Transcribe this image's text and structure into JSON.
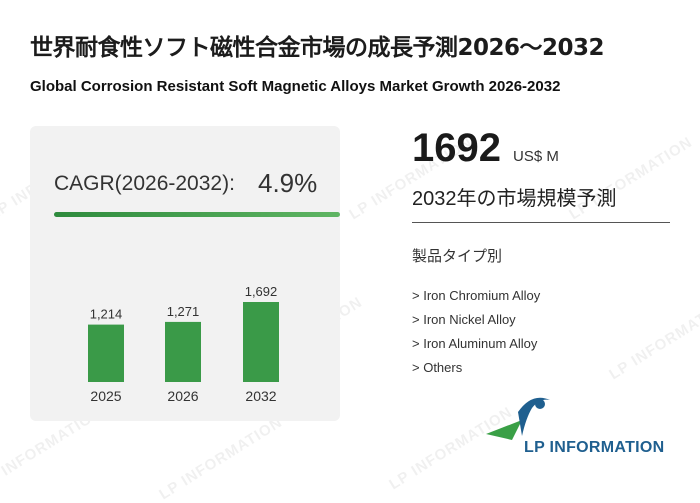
{
  "header": {
    "title_jp": "世界耐食性ソフト磁性合金市場の成長予測2026～2032",
    "title_en": "Global Corrosion Resistant Soft Magnetic Alloys Market Growth 2026-2032"
  },
  "cagr": {
    "label": "CAGR(2026-2032):",
    "value": "4.9%"
  },
  "headline": {
    "value": "1692",
    "unit": "US$ M",
    "subtitle": "2032年の市場規模予測"
  },
  "segments": {
    "title": "製品タイプ別",
    "items": [
      "> Iron Chromium Alloy",
      "> Iron Nickel Alloy",
      "> Iron Aluminum Alloy",
      "> Others"
    ]
  },
  "brand": {
    "name": "LP INFORMATION",
    "watermark": "LP INFORMATION"
  },
  "colors": {
    "bar": "#3a9a48",
    "accent_line": "#2e8b3d",
    "brand_blue": "#1f5f8f",
    "brand_green": "#3aa046"
  },
  "chart_data": {
    "type": "bar",
    "categories": [
      "2025",
      "2026",
      "2032"
    ],
    "values": [
      1214,
      1271,
      1692
    ],
    "value_labels": [
      "1,214",
      "1,271",
      "1,692"
    ],
    "title": "",
    "xlabel": "",
    "ylabel": "",
    "grid": false
  }
}
